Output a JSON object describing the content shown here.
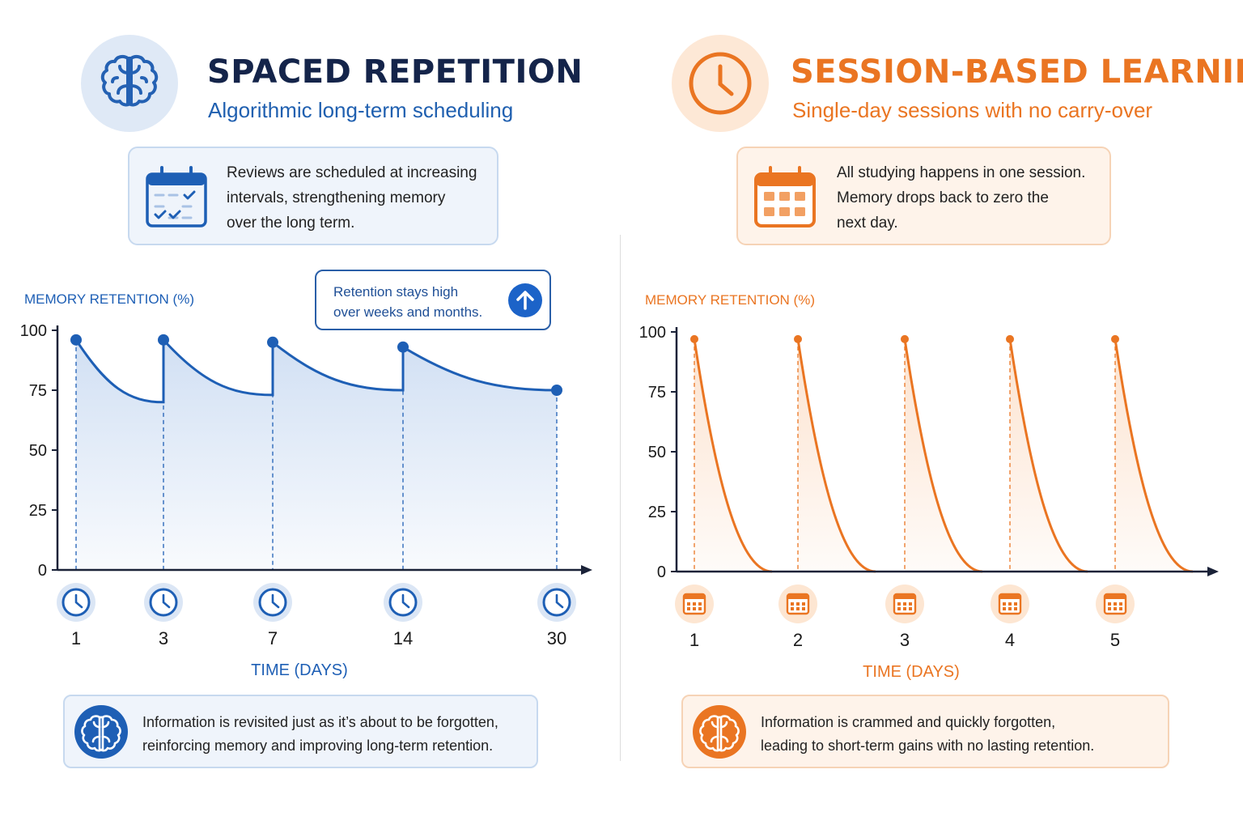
{
  "left": {
    "title": "SPACED REPETITION",
    "subtitle": "Algorithmic long-term scheduling",
    "info_icon": "calendar-check-icon",
    "info_text": "Reviews are scheduled at increasing\nintervals, strengthening memory\nover the long term.",
    "callout_text": "Retention stays high\nover weeks and months.",
    "callout_icon": "arrow-up-icon",
    "summary_icon": "brain-icon",
    "summary_text": "Information is revisited just as it’s about to be forgotten,\nreinforcing memory and improving long-term retention.",
    "accent": "#1e5fb5"
  },
  "right": {
    "title": "SESSION-BASED LEARNING",
    "subtitle": "Single-day sessions with no carry-over",
    "info_icon": "calendar-grid-icon",
    "info_text": "All studying happens in one session.\nMemory drops back to zero the\nnext day.",
    "summary_icon": "brain-icon",
    "summary_text": "Information is crammed and quickly forgotten,\nleading to short-term gains with no lasting retention.",
    "accent": "#ea7522"
  },
  "chart_data": [
    {
      "type": "line",
      "ylabel": "MEMORY RETENTION (%)",
      "xlabel": "TIME (DAYS)",
      "ylim": [
        0,
        100
      ],
      "yticks": [
        0,
        25,
        50,
        75,
        100
      ],
      "categories": [
        "1",
        "3",
        "7",
        "14",
        "30"
      ],
      "marker_icon": "clock-icon",
      "review_peaks": [
        96,
        96,
        95,
        93,
        75
      ],
      "decay_to": [
        70,
        73,
        75
      ],
      "grid": false,
      "color": "#1e5fb5"
    },
    {
      "type": "line",
      "ylabel": "MEMORY RETENTION (%)",
      "xlabel": "TIME (DAYS)",
      "ylim": [
        0,
        100
      ],
      "yticks": [
        0,
        25,
        50,
        75,
        100
      ],
      "categories": [
        "1",
        "2",
        "3",
        "4",
        "5"
      ],
      "marker_icon": "calendar-icon",
      "session_peaks": [
        97,
        97,
        97,
        97,
        97
      ],
      "decay_to": [
        0,
        0,
        0,
        0,
        0
      ],
      "grid": false,
      "color": "#ea7522"
    }
  ]
}
